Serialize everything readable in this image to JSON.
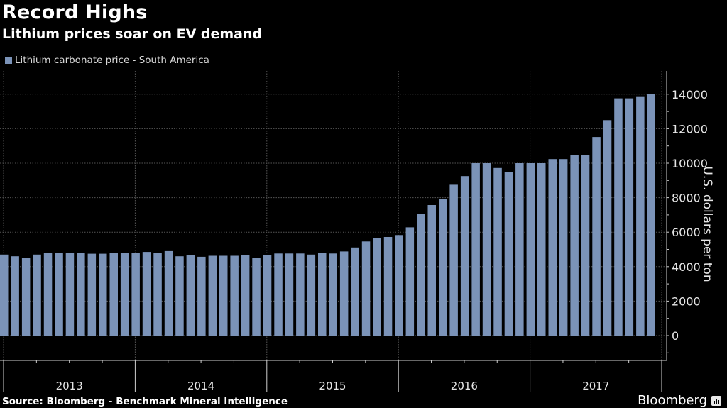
{
  "header": {
    "title": "Record Highs",
    "subtitle": "Lithium prices soar on EV demand"
  },
  "legend": {
    "items": [
      {
        "label": "Lithium carbonate price - South America",
        "color": "#7b93b8"
      }
    ]
  },
  "footer": {
    "source": "Source: Bloomberg - Benchmark Mineral Intelligence",
    "brand": "Bloomberg",
    "brand_icon": "bar-chart-bubble-icon"
  },
  "colors": {
    "background": "#000000",
    "bar": "#7b93b8",
    "grid": "#555555",
    "axis": "#cfcfcf",
    "text": "#e6e6e6"
  },
  "chart_data": {
    "type": "bar",
    "title": "Record Highs",
    "subtitle": "Lithium prices soar on EV demand",
    "xlabel": "",
    "ylabel": "U.S. dollars per ton",
    "ylim": [
      -1500,
      15200
    ],
    "yticks": [
      0,
      2000,
      4000,
      6000,
      8000,
      10000,
      12000,
      14000
    ],
    "grid": true,
    "legend_position": "top-left",
    "y_axis_side": "right",
    "x_year_labels": [
      "2013",
      "2014",
      "2015",
      "2016",
      "2017"
    ],
    "categories": [
      "2013-01",
      "2013-02",
      "2013-03",
      "2013-04",
      "2013-05",
      "2013-06",
      "2013-07",
      "2013-08",
      "2013-09",
      "2013-10",
      "2013-11",
      "2013-12",
      "2014-01",
      "2014-02",
      "2014-03",
      "2014-04",
      "2014-05",
      "2014-06",
      "2014-07",
      "2014-08",
      "2014-09",
      "2014-10",
      "2014-11",
      "2014-12",
      "2015-01",
      "2015-02",
      "2015-03",
      "2015-04",
      "2015-05",
      "2015-06",
      "2015-07",
      "2015-08",
      "2015-09",
      "2015-10",
      "2015-11",
      "2015-12",
      "2016-01",
      "2016-02",
      "2016-03",
      "2016-04",
      "2016-05",
      "2016-06",
      "2016-07",
      "2016-08",
      "2016-09",
      "2016-10",
      "2016-11",
      "2016-12",
      "2017-01",
      "2017-02",
      "2017-03",
      "2017-04",
      "2017-05",
      "2017-06",
      "2017-07",
      "2017-08",
      "2017-09",
      "2017-10",
      "2017-11",
      "2017-12"
    ],
    "series": [
      {
        "name": "Lithium carbonate price - South America",
        "values": [
          4700,
          4600,
          4500,
          4700,
          4800,
          4800,
          4800,
          4780,
          4750,
          4750,
          4800,
          4780,
          4800,
          4850,
          4780,
          4900,
          4600,
          4650,
          4570,
          4630,
          4630,
          4630,
          4660,
          4510,
          4660,
          4760,
          4760,
          4760,
          4700,
          4800,
          4760,
          4880,
          5110,
          5460,
          5650,
          5720,
          5830,
          6280,
          7050,
          7570,
          7900,
          8750,
          9250,
          10000,
          10000,
          9720,
          9480,
          10000,
          10000,
          10000,
          10240,
          10240,
          10480,
          10480,
          11520,
          12500,
          13760,
          13760,
          13880,
          14000
        ]
      }
    ]
  }
}
